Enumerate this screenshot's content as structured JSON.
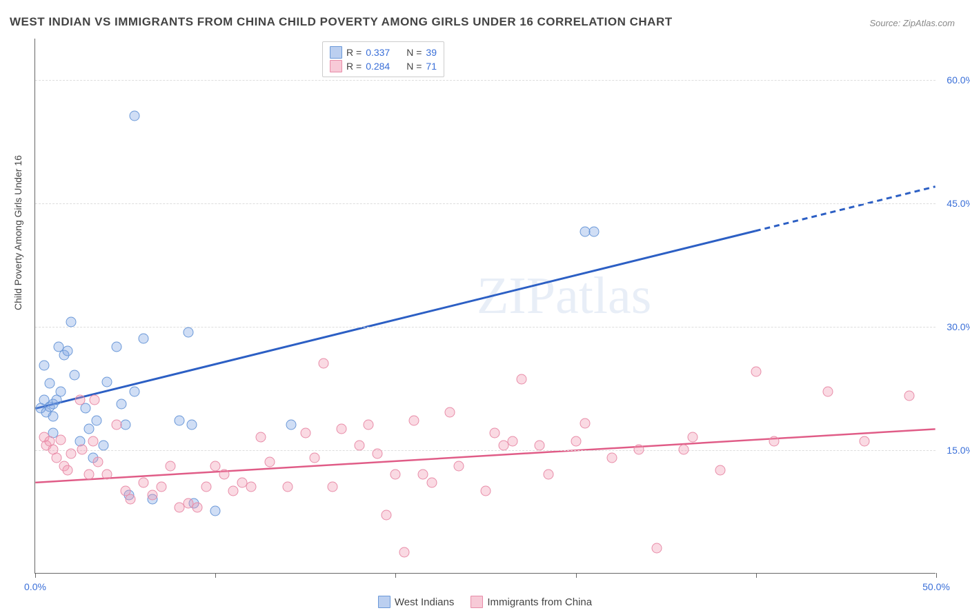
{
  "title": "WEST INDIAN VS IMMIGRANTS FROM CHINA CHILD POVERTY AMONG GIRLS UNDER 16 CORRELATION CHART",
  "source": "Source: ZipAtlas.com",
  "ylabel": "Child Poverty Among Girls Under 16",
  "watermark": "ZIPatlas",
  "chart": {
    "type": "scatter",
    "xlim": [
      0,
      50
    ],
    "ylim": [
      0,
      65
    ],
    "x_ticks": [
      0,
      10,
      20,
      30,
      40,
      50
    ],
    "x_tick_labels": {
      "0": "0.0%",
      "50": "50.0%"
    },
    "y_ticks": [
      15,
      30,
      45,
      60
    ],
    "y_tick_labels": [
      "15.0%",
      "30.0%",
      "45.0%",
      "60.0%"
    ],
    "grid_color": "#dddddd",
    "axis_color": "#666666",
    "background_color": "#ffffff",
    "marker_radius": 7.5,
    "series": [
      {
        "name": "West Indians",
        "color_fill": "rgba(120,160,225,0.35)",
        "color_stroke": "#6a98d8",
        "trend_color": "#2c5fc4",
        "trend_width": 3,
        "trend_dash_after_x": 40,
        "R": "0.337",
        "N": "39",
        "trend": {
          "x1": 0,
          "y1": 20,
          "x2": 50,
          "y2": 47
        },
        "points": [
          [
            0.3,
            20
          ],
          [
            0.5,
            21
          ],
          [
            0.6,
            19.5
          ],
          [
            0.8,
            20.2
          ],
          [
            1.0,
            19
          ],
          [
            1.0,
            20.5
          ],
          [
            1.2,
            21
          ],
          [
            0.5,
            25.2
          ],
          [
            1.3,
            27.5
          ],
          [
            1.6,
            26.5
          ],
          [
            1.8,
            27
          ],
          [
            2.0,
            30.5
          ],
          [
            0.8,
            23
          ],
          [
            1.0,
            17
          ],
          [
            1.4,
            22
          ],
          [
            2.2,
            24
          ],
          [
            2.5,
            16
          ],
          [
            3.0,
            17.5
          ],
          [
            3.2,
            14
          ],
          [
            3.4,
            18.5
          ],
          [
            3.8,
            15.5
          ],
          [
            4.0,
            23.2
          ],
          [
            4.5,
            27.5
          ],
          [
            4.8,
            20.5
          ],
          [
            5.0,
            18
          ],
          [
            5.2,
            9.5
          ],
          [
            5.5,
            22
          ],
          [
            6.0,
            28.5
          ],
          [
            6.5,
            9
          ],
          [
            8.0,
            18.5
          ],
          [
            8.5,
            29.2
          ],
          [
            8.7,
            18
          ],
          [
            8.8,
            8.5
          ],
          [
            10.0,
            7.5
          ],
          [
            14.2,
            18
          ],
          [
            5.5,
            55.5
          ],
          [
            30.5,
            41.5
          ],
          [
            31.0,
            41.5
          ],
          [
            2.8,
            20
          ]
        ]
      },
      {
        "name": "Immigrants from China",
        "color_fill": "rgba(240,150,175,0.35)",
        "color_stroke": "#e88ca8",
        "trend_color": "#e05c87",
        "trend_width": 2.5,
        "R": "0.284",
        "N": "71",
        "trend": {
          "x1": 0,
          "y1": 11,
          "x2": 50,
          "y2": 17.5
        },
        "points": [
          [
            0.5,
            16.5
          ],
          [
            0.6,
            15.5
          ],
          [
            0.8,
            16
          ],
          [
            1.0,
            15
          ],
          [
            1.2,
            14
          ],
          [
            1.4,
            16.2
          ],
          [
            1.6,
            13
          ],
          [
            1.8,
            12.5
          ],
          [
            2.0,
            14.5
          ],
          [
            2.5,
            21
          ],
          [
            2.6,
            15
          ],
          [
            3.0,
            12
          ],
          [
            3.2,
            16
          ],
          [
            3.3,
            21
          ],
          [
            3.5,
            13.5
          ],
          [
            4.0,
            12
          ],
          [
            4.5,
            18
          ],
          [
            5.0,
            10
          ],
          [
            5.3,
            9
          ],
          [
            6.0,
            11
          ],
          [
            6.5,
            9.5
          ],
          [
            7.0,
            10.5
          ],
          [
            7.5,
            13
          ],
          [
            8.0,
            8
          ],
          [
            8.5,
            8.5
          ],
          [
            9.0,
            8
          ],
          [
            9.5,
            10.5
          ],
          [
            10.0,
            13
          ],
          [
            10.5,
            12
          ],
          [
            11.0,
            10
          ],
          [
            11.5,
            11
          ],
          [
            12.0,
            10.5
          ],
          [
            12.5,
            16.5
          ],
          [
            13.0,
            13.5
          ],
          [
            14.0,
            10.5
          ],
          [
            15.0,
            17
          ],
          [
            15.5,
            14
          ],
          [
            16.0,
            25.5
          ],
          [
            16.5,
            10.5
          ],
          [
            17.0,
            17.5
          ],
          [
            18.0,
            15.5
          ],
          [
            18.5,
            18
          ],
          [
            19.0,
            14.5
          ],
          [
            19.5,
            7
          ],
          [
            20.0,
            12
          ],
          [
            20.5,
            2.5
          ],
          [
            21.0,
            18.5
          ],
          [
            21.5,
            12
          ],
          [
            22.0,
            11
          ],
          [
            23.0,
            19.5
          ],
          [
            23.5,
            13
          ],
          [
            25.0,
            10
          ],
          [
            25.5,
            17
          ],
          [
            26.0,
            15.5
          ],
          [
            26.5,
            16
          ],
          [
            27.0,
            23.5
          ],
          [
            28.0,
            15.5
          ],
          [
            28.5,
            12
          ],
          [
            30.0,
            16
          ],
          [
            30.5,
            18.2
          ],
          [
            32.0,
            14
          ],
          [
            33.5,
            15
          ],
          [
            34.5,
            3
          ],
          [
            36.0,
            15
          ],
          [
            38.0,
            12.5
          ],
          [
            40.0,
            24.5
          ],
          [
            41.0,
            16
          ],
          [
            44.0,
            22
          ],
          [
            46.0,
            16
          ],
          [
            48.5,
            21.5
          ],
          [
            36.5,
            16.5
          ]
        ]
      }
    ]
  },
  "legend_top": {
    "rows": [
      {
        "swatch_fill": "rgba(120,160,225,0.5)",
        "swatch_stroke": "#6a98d8",
        "r_label": "R =",
        "r_val": "0.337",
        "n_label": "N =",
        "n_val": "39"
      },
      {
        "swatch_fill": "rgba(240,150,175,0.5)",
        "swatch_stroke": "#e88ca8",
        "r_label": "R =",
        "r_val": "0.284",
        "n_label": "N =",
        "n_val": "71"
      }
    ]
  },
  "legend_bottom": {
    "items": [
      {
        "swatch_fill": "rgba(120,160,225,0.5)",
        "swatch_stroke": "#6a98d8",
        "label": "West Indians"
      },
      {
        "swatch_fill": "rgba(240,150,175,0.5)",
        "swatch_stroke": "#e88ca8",
        "label": "Immigrants from China"
      }
    ]
  }
}
